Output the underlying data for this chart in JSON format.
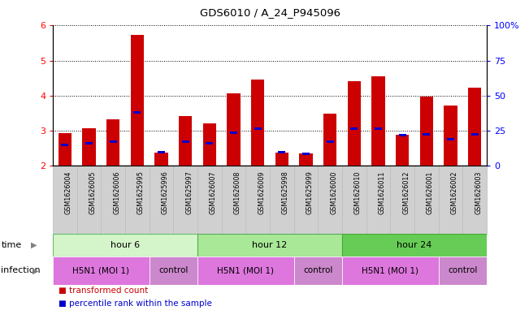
{
  "title": "GDS6010 / A_24_P945096",
  "samples": [
    "GSM1626004",
    "GSM1626005",
    "GSM1626006",
    "GSM1625995",
    "GSM1625996",
    "GSM1625997",
    "GSM1626007",
    "GSM1626008",
    "GSM1626009",
    "GSM1625998",
    "GSM1625999",
    "GSM1626000",
    "GSM1626010",
    "GSM1626011",
    "GSM1626012",
    "GSM1626001",
    "GSM1626002",
    "GSM1626003"
  ],
  "transformed_count": [
    2.93,
    3.07,
    3.32,
    5.73,
    2.38,
    3.42,
    3.22,
    4.07,
    4.45,
    2.38,
    2.35,
    3.48,
    4.42,
    4.56,
    2.88,
    3.97,
    3.72,
    4.22
  ],
  "percentile_rank": [
    2.6,
    2.65,
    2.68,
    3.52,
    2.38,
    2.68,
    2.65,
    2.95,
    3.05,
    2.38,
    2.35,
    2.68,
    3.05,
    3.07,
    2.88,
    2.9,
    2.77,
    2.9
  ],
  "bar_color": "#cc0000",
  "percentile_color": "#0000cc",
  "ymin": 2,
  "ymax": 6,
  "yticks": [
    2,
    3,
    4,
    5,
    6
  ],
  "right_yticks_pct": [
    0,
    25,
    50,
    75,
    100
  ],
  "right_yticklabels": [
    "0",
    "25",
    "50",
    "75",
    "100%"
  ],
  "time_groups": [
    {
      "label": "hour 6",
      "start": 0,
      "end": 6,
      "color": "#d4f5c9",
      "border": "#66bb66"
    },
    {
      "label": "hour 12",
      "start": 6,
      "end": 12,
      "color": "#a8e896",
      "border": "#55aa55"
    },
    {
      "label": "hour 24",
      "start": 12,
      "end": 18,
      "color": "#66cc55",
      "border": "#44aa33"
    }
  ],
  "infection_groups": [
    {
      "label": "H5N1 (MOI 1)",
      "start": 0,
      "end": 4,
      "color": "#dd77dd"
    },
    {
      "label": "control",
      "start": 4,
      "end": 6,
      "color": "#cc88cc"
    },
    {
      "label": "H5N1 (MOI 1)",
      "start": 6,
      "end": 10,
      "color": "#dd77dd"
    },
    {
      "label": "control",
      "start": 10,
      "end": 12,
      "color": "#cc88cc"
    },
    {
      "label": "H5N1 (MOI 1)",
      "start": 12,
      "end": 16,
      "color": "#dd77dd"
    },
    {
      "label": "control",
      "start": 16,
      "end": 18,
      "color": "#cc88cc"
    }
  ],
  "sample_bg": "#d0d0d0",
  "sample_border": "#bbbbbb"
}
